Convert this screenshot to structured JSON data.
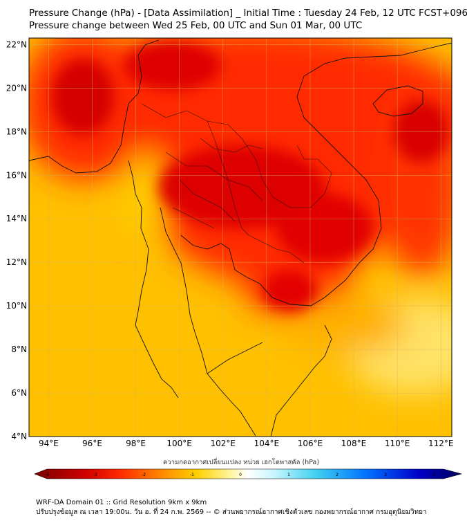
{
  "title": {
    "line1": "Pressure Change (hPa) - [Data Assimilation] _ Initial Time : Tuesday 24 Feb, 12 UTC FCST+096",
    "line2": "Pressure change between Wed 25 Feb, 00 UTC and Sun 01 Mar, 00 UTC"
  },
  "map": {
    "lat_ticks": [
      "22°N",
      "20°N",
      "18°N",
      "16°N",
      "14°N",
      "12°N",
      "10°N",
      "8°N",
      "6°N",
      "4°N"
    ],
    "lon_ticks": [
      "94°E",
      "96°E",
      "98°E",
      "100°E",
      "102°E",
      "104°E",
      "106°E",
      "108°E",
      "110°E",
      "112°E"
    ],
    "lat_range": [
      4,
      22.3
    ],
    "lon_range": [
      93.1,
      112.5
    ],
    "grid": true
  },
  "colorbar": {
    "label": "ความกดอากาศเปลี่ยนแปลง หน่วย เฮกโตพาสคัล (hPa)",
    "ticks": [
      "-4",
      "-3",
      "-2",
      "-1",
      "0",
      "1",
      "2",
      "3",
      "4"
    ],
    "range": [
      -4,
      4
    ],
    "colors": [
      "#7a0000",
      "#e00000",
      "#ff3300",
      "#ff8800",
      "#ffd400",
      "#fff7a0",
      "#ffffff",
      "#a0f0ff",
      "#30c8f0",
      "#0060ff",
      "#0000c0",
      "#000060"
    ]
  },
  "footer": {
    "line1": "WRF-DA Domain 01 :: Grid Resolution 9km x 9km",
    "line2": "ปรับปรุงข้อมูล ณ เวลา 19:00น. วัน อ. ที่ 24 ก.พ. 2569 -- © ส่วนพยากรณ์อากาศเชิงตัวเลข กองพยากรณ์อากาศ กรมอุตุนิยมวิทยา"
  }
}
